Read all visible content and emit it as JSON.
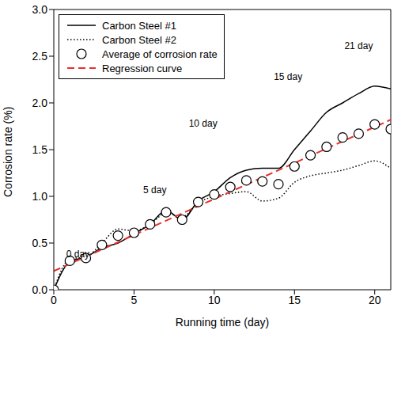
{
  "chart_data": {
    "type": "line",
    "x_label": "Running time  (day)",
    "y_label": "Corrosion rate  (%)",
    "xlim": [
      0,
      21
    ],
    "xticks": [
      0,
      5,
      10,
      15,
      20
    ],
    "ylim": [
      0,
      3.0
    ],
    "yticks": [
      {
        "value": 0,
        "label": "0.0"
      },
      {
        "value": 0.5,
        "label": "0.5"
      },
      {
        "value": 1.0,
        "label": "1.0"
      },
      {
        "value": 1.5,
        "label": "1.5"
      },
      {
        "value": 2.0,
        "label": "2.0"
      },
      {
        "value": 2.5,
        "label": "2.5"
      },
      {
        "value": 3.0,
        "label": "3.0"
      }
    ],
    "legend": "upper left",
    "series": [
      {
        "name": "Carbon Steel #1",
        "type": "line",
        "color": "#000000",
        "line_style": "solid",
        "x": [
          0,
          1,
          2,
          3,
          4,
          5,
          6,
          7,
          8,
          9,
          10,
          11,
          12,
          13,
          14,
          15,
          16,
          17,
          18,
          19,
          20,
          21
        ],
        "values": [
          0,
          0.3,
          0.35,
          0.45,
          0.5,
          0.6,
          0.7,
          0.85,
          0.75,
          0.95,
          1.05,
          1.2,
          1.28,
          1.3,
          1.3,
          1.5,
          1.7,
          1.9,
          2.0,
          2.1,
          2.18,
          2.15
        ]
      },
      {
        "name": "Carbon Steel #2",
        "type": "line",
        "color": "#000000",
        "line_style": "dotted",
        "x": [
          0,
          1,
          2,
          3,
          4,
          5,
          6,
          7,
          8,
          9,
          10,
          11,
          12,
          13,
          14,
          15,
          16,
          17,
          18,
          19,
          20,
          21
        ],
        "values": [
          0,
          0.33,
          0.35,
          0.5,
          0.65,
          0.63,
          0.7,
          0.82,
          0.78,
          0.93,
          1.0,
          1.03,
          1.05,
          0.95,
          0.98,
          1.15,
          1.22,
          1.25,
          1.28,
          1.33,
          1.38,
          1.3
        ]
      },
      {
        "name": "Average of corrosion rate",
        "type": "scatter",
        "color": "#000000",
        "marker": "open_circle",
        "x": [
          0,
          1,
          2,
          3,
          4,
          5,
          6,
          7,
          8,
          9,
          10,
          11,
          12,
          13,
          14,
          15,
          16,
          17,
          18,
          19,
          20,
          21
        ],
        "values": [
          0,
          0.31,
          0.34,
          0.48,
          0.58,
          0.61,
          0.7,
          0.83,
          0.75,
          0.94,
          1.02,
          1.1,
          1.17,
          1.16,
          1.13,
          1.32,
          1.44,
          1.53,
          1.63,
          1.67,
          1.77,
          1.72
        ]
      },
      {
        "name": "Regression curve",
        "type": "line",
        "color": "#e8302a",
        "line_style": "dashed",
        "x": [
          0,
          21
        ],
        "values": [
          0.2,
          1.82
        ]
      }
    ],
    "annotations": [
      {
        "text": "0 day",
        "x": 1.5,
        "y": 0.38
      },
      {
        "text": "5 day",
        "x": 6.3,
        "y": 1.07
      },
      {
        "text": "10 day",
        "x": 9.3,
        "y": 1.78
      },
      {
        "text": "15 day",
        "x": 14.6,
        "y": 2.28
      },
      {
        "text": "21 day",
        "x": 19.0,
        "y": 2.61
      }
    ]
  }
}
